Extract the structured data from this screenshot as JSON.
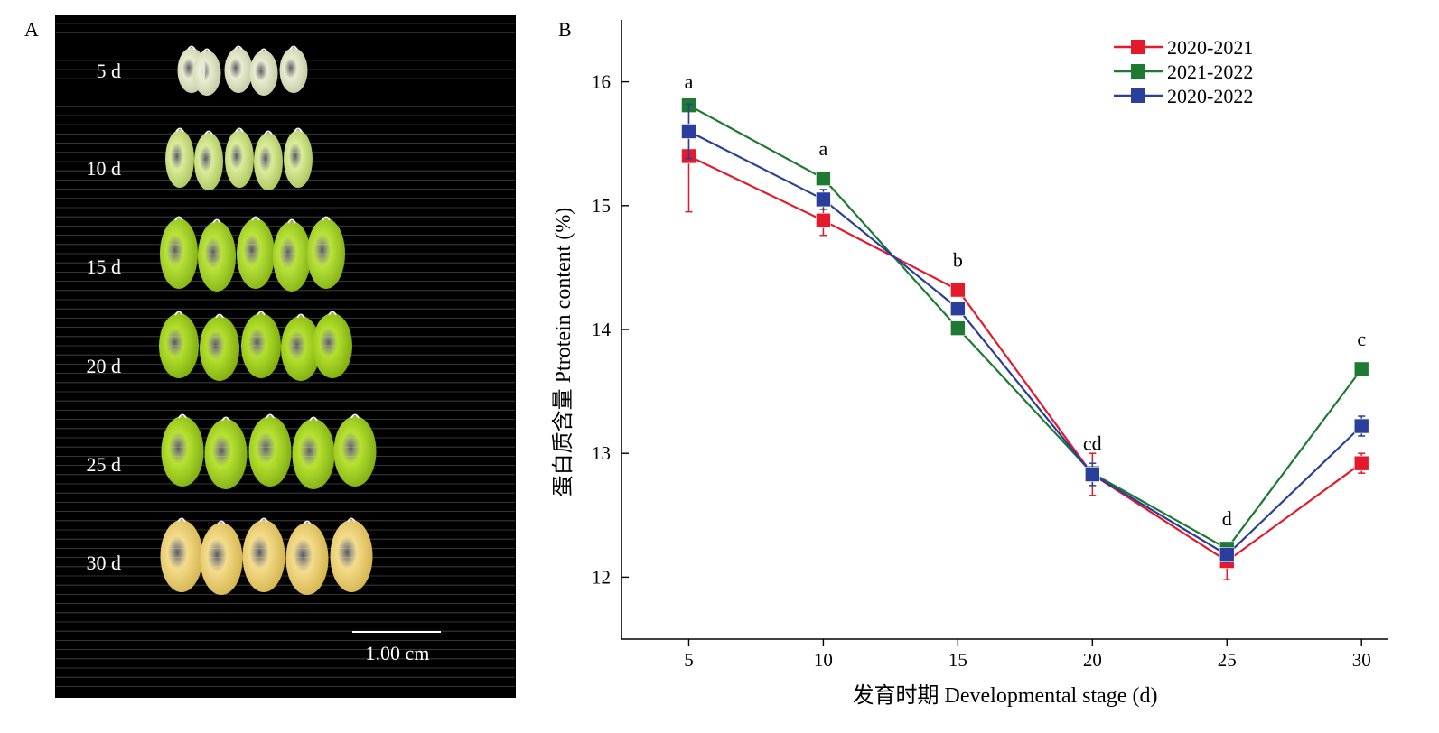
{
  "panel_a": {
    "label": "A",
    "rows": [
      {
        "label": "5 d",
        "kernel_color": "#e9ecd0",
        "shade_color": "#bfc7a0"
      },
      {
        "label": "10 d",
        "kernel_color": "#d9ec98",
        "shade_color": "#a8c05a"
      },
      {
        "label": "15 d",
        "kernel_color": "#b9e33a",
        "shade_color": "#7fae12"
      },
      {
        "label": "20 d",
        "kernel_color": "#b3e02c",
        "shade_color": "#78a70c"
      },
      {
        "label": "25 d",
        "kernel_color": "#b7e230",
        "shade_color": "#7aa912"
      },
      {
        "label": "30 d",
        "kernel_color": "#f4dc8a",
        "shade_color": "#d2b04a"
      }
    ],
    "scale_bar_label": "1.00 cm",
    "background": "#000000"
  },
  "panel_b": {
    "label": "B",
    "stat_letters": [
      "a",
      "a",
      "b",
      "cd",
      "d",
      "c"
    ]
  },
  "chart_data": {
    "type": "line",
    "x": [
      5,
      10,
      15,
      20,
      25,
      30
    ],
    "xlabel": "发育时期 Developmental stage (d)",
    "ylabel": "蛋白质含量 Ptrotein content (%)",
    "xlim": [
      2.5,
      31
    ],
    "ylim": [
      11.5,
      16.5
    ],
    "xticks": [
      5,
      10,
      15,
      20,
      25,
      30
    ],
    "yticks": [
      12,
      13,
      14,
      15,
      16
    ],
    "legend_position": "top-right",
    "series": [
      {
        "name": "2020-2021",
        "color": "#e41a2c",
        "values": [
          15.4,
          14.88,
          14.32,
          12.83,
          12.13,
          12.92
        ],
        "errors": [
          0.45,
          0.12,
          0.03,
          0.17,
          0.15,
          0.08
        ]
      },
      {
        "name": "2021-2022",
        "color": "#1e7a32",
        "values": [
          15.81,
          15.22,
          14.01,
          12.84,
          12.23,
          13.68
        ],
        "errors": [
          0.04,
          0.04,
          0.03,
          0.04,
          0.04,
          0.03
        ]
      },
      {
        "name": "2020-2022",
        "color": "#2a3e9b",
        "values": [
          15.6,
          15.05,
          14.17,
          12.83,
          12.18,
          13.22
        ],
        "errors": [
          0.22,
          0.08,
          0.05,
          0.09,
          0.06,
          0.08
        ]
      }
    ]
  }
}
